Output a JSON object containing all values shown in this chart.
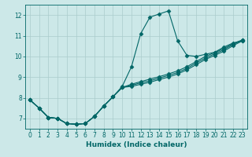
{
  "title": "",
  "xlabel": "Humidex (Indice chaleur)",
  "ylabel": "",
  "bg_color": "#cce8e8",
  "grid_color": "#aacccc",
  "line_color": "#006666",
  "xlim": [
    -0.5,
    23.5
  ],
  "ylim": [
    6.5,
    12.5
  ],
  "yticks": [
    7,
    8,
    9,
    10,
    11,
    12
  ],
  "xticks": [
    0,
    1,
    2,
    3,
    4,
    5,
    6,
    7,
    8,
    9,
    10,
    11,
    12,
    13,
    14,
    15,
    16,
    17,
    18,
    19,
    20,
    21,
    22,
    23
  ],
  "curves": [
    {
      "x": [
        0,
        1,
        2,
        3,
        4,
        5,
        6,
        7,
        8,
        9,
        10,
        11,
        12,
        13,
        14,
        15,
        16,
        17,
        18,
        19,
        20,
        21,
        22,
        23
      ],
      "y": [
        7.9,
        7.5,
        7.05,
        7.0,
        6.75,
        6.72,
        6.75,
        7.1,
        7.6,
        8.05,
        8.55,
        9.5,
        11.1,
        11.9,
        12.05,
        12.2,
        10.75,
        10.05,
        10.0,
        10.1,
        10.2,
        10.45,
        10.65,
        10.75
      ]
    },
    {
      "x": [
        0,
        1,
        2,
        3,
        4,
        5,
        6,
        7,
        8,
        9,
        10,
        11,
        12,
        13,
        14,
        15,
        16,
        17,
        18,
        19,
        20,
        21,
        22,
        23
      ],
      "y": [
        7.9,
        7.5,
        7.05,
        7.0,
        6.75,
        6.72,
        6.75,
        7.1,
        7.6,
        8.05,
        8.5,
        8.55,
        8.65,
        8.75,
        8.88,
        9.0,
        9.15,
        9.35,
        9.6,
        9.85,
        10.05,
        10.25,
        10.52,
        10.75
      ]
    },
    {
      "x": [
        0,
        1,
        2,
        3,
        4,
        5,
        6,
        7,
        8,
        9,
        10,
        11,
        12,
        13,
        14,
        15,
        16,
        17,
        18,
        19,
        20,
        21,
        22,
        23
      ],
      "y": [
        7.9,
        7.5,
        7.05,
        7.0,
        6.75,
        6.72,
        6.75,
        7.1,
        7.6,
        8.05,
        8.5,
        8.6,
        8.72,
        8.82,
        8.95,
        9.08,
        9.22,
        9.42,
        9.68,
        9.92,
        10.12,
        10.32,
        10.58,
        10.78
      ]
    },
    {
      "x": [
        0,
        1,
        2,
        3,
        4,
        5,
        6,
        7,
        8,
        9,
        10,
        11,
        12,
        13,
        14,
        15,
        16,
        17,
        18,
        19,
        20,
        21,
        22,
        23
      ],
      "y": [
        7.9,
        7.5,
        7.05,
        7.0,
        6.75,
        6.72,
        6.75,
        7.1,
        7.6,
        8.05,
        8.5,
        8.65,
        8.78,
        8.9,
        9.02,
        9.15,
        9.3,
        9.5,
        9.75,
        10.0,
        10.18,
        10.38,
        10.62,
        10.8
      ]
    }
  ],
  "marker": "D",
  "marker_size": 2.5,
  "linewidth": 0.8,
  "tick_labelsize": 5.5,
  "xlabel_fontsize": 6.5
}
